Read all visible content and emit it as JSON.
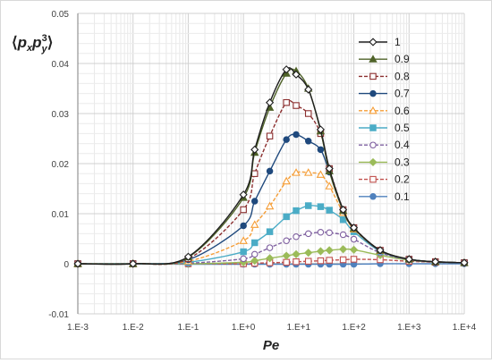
{
  "chart_data": {
    "type": "line",
    "xlabel": "Pe",
    "ylabel": {
      "open": "⟨",
      "p1": "p",
      "s1": "x",
      "p2": "p",
      "s2": "y",
      "sup": "3",
      "close": "⟩"
    },
    "x_scale": "log",
    "xlim": [
      0.001,
      10000
    ],
    "ylim": [
      -0.01,
      0.05
    ],
    "x_tick_labels": [
      "1.E-3",
      "1.E-2",
      "1.E-1",
      "1.E+0",
      "1.E+1",
      "1.E+2",
      "1.E+3",
      "1.E+4"
    ],
    "y_tick_labels": [
      "-0.01",
      "0",
      "0.01",
      "0.02",
      "0.03",
      "0.04",
      "0.05"
    ],
    "y_ticks": [
      -0.01,
      0,
      0.01,
      0.02,
      0.03,
      0.04,
      0.05
    ],
    "grid": true,
    "legend_position": "top-right",
    "x": [
      0.001,
      0.01,
      0.1,
      1,
      1.6,
      3,
      6,
      9,
      15,
      25,
      36,
      64,
      100,
      300,
      1000,
      3000,
      10000
    ],
    "series": [
      {
        "name": "1",
        "color": "#1f1f1f",
        "marker": "diamond-open",
        "dash": "solid",
        "values": [
          0,
          0,
          0.0014,
          0.0138,
          0.0228,
          0.0322,
          0.0388,
          0.0378,
          0.0348,
          0.0268,
          0.019,
          0.0108,
          0.0072,
          0.0027,
          0.0009,
          0.0004,
          0.0002
        ]
      },
      {
        "name": "0.9",
        "color": "#4f6228",
        "marker": "triangle-filled",
        "dash": "solid",
        "values": [
          0,
          0,
          0.0013,
          0.0132,
          0.0222,
          0.0312,
          0.038,
          0.0385,
          0.035,
          0.0265,
          0.0185,
          0.0106,
          0.0071,
          0.0027,
          0.0009,
          0.0004,
          0.0002
        ]
      },
      {
        "name": "0.8",
        "color": "#8b2e2e",
        "marker": "square-open",
        "dash": "dash",
        "values": [
          0,
          0,
          0.001,
          0.0108,
          0.018,
          0.0255,
          0.0322,
          0.0316,
          0.03,
          0.026,
          0.019,
          0.0108,
          0.0072,
          0.0027,
          0.0009,
          0.0004,
          0.0002
        ]
      },
      {
        "name": "0.7",
        "color": "#1f497d",
        "marker": "circle-filled",
        "dash": "solid",
        "values": [
          0,
          0,
          0.0008,
          0.0076,
          0.0125,
          0.0185,
          0.0248,
          0.0258,
          0.0245,
          0.0228,
          0.0183,
          0.0106,
          0.0071,
          0.0026,
          0.0009,
          0.0004,
          0.0002
        ]
      },
      {
        "name": "0.6",
        "color": "#f59d36",
        "marker": "triangle-open",
        "dash": "dash",
        "values": [
          0,
          0,
          0.0005,
          0.0046,
          0.0078,
          0.0115,
          0.0165,
          0.0182,
          0.0182,
          0.0178,
          0.0155,
          0.0102,
          0.0069,
          0.0026,
          0.0009,
          0.0004,
          0.0002
        ]
      },
      {
        "name": "0.5",
        "color": "#4bacc6",
        "marker": "square-filled",
        "dash": "solid",
        "values": [
          0,
          0,
          0.0003,
          0.0024,
          0.0042,
          0.0064,
          0.0094,
          0.0106,
          0.0116,
          0.0114,
          0.0107,
          0.0088,
          0.0064,
          0.0025,
          0.0009,
          0.0004,
          0.0002
        ]
      },
      {
        "name": "0.4",
        "color": "#7f60a0",
        "marker": "circle-open",
        "dash": "dash",
        "values": [
          0,
          0,
          0.0001,
          0.001,
          0.0019,
          0.0032,
          0.0046,
          0.0054,
          0.006,
          0.0063,
          0.0062,
          0.0058,
          0.0049,
          0.0022,
          0.0008,
          0.0003,
          0.0002
        ]
      },
      {
        "name": "0.3",
        "color": "#9bbb59",
        "marker": "diamond-filled",
        "dash": "solid",
        "values": [
          0,
          0,
          0,
          0.0003,
          0.0006,
          0.0011,
          0.0016,
          0.0019,
          0.0022,
          0.0025,
          0.0027,
          0.0029,
          0.0028,
          0.0017,
          0.0007,
          0.0003,
          0.0002
        ]
      },
      {
        "name": "0.2",
        "color": "#c0504d",
        "marker": "square-open",
        "dash": "dash",
        "values": [
          0,
          0,
          0,
          0,
          0.0001,
          0.0002,
          0.0003,
          0.0004,
          0.0005,
          0.0006,
          0.0007,
          0.0008,
          0.0009,
          0.0008,
          0.0005,
          0.0003,
          0.0002
        ]
      },
      {
        "name": "0.1",
        "color": "#4f81bd",
        "marker": "circle-filled",
        "dash": "solid",
        "values": [
          0,
          0,
          -0.0001,
          -0.0001,
          -0.0001,
          -0.0001,
          -0.0001,
          -0.0001,
          -0.0001,
          -0.0001,
          -0.0001,
          -0.0001,
          -0.0001,
          0,
          0,
          0,
          0
        ]
      }
    ]
  }
}
